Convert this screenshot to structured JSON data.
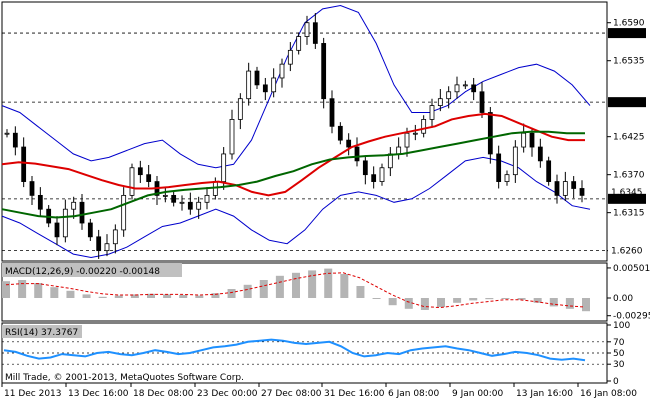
{
  "main": {
    "price_ticks": [
      "1.6590",
      "1.6535",
      "1.6425",
      "1.6370",
      "1.6315",
      "1.6260"
    ],
    "levels": [
      {
        "value": "1.6575",
        "bg": "#000000",
        "fg": "#ffffff"
      },
      {
        "value": "1.6475",
        "bg": "#000000",
        "fg": "#ffffff"
      },
      {
        "value": "1.6345",
        "bg": "#ffffff",
        "fg": "#000000"
      },
      {
        "value": "1.6335",
        "bg": "#000000",
        "fg": "#ffffff"
      },
      {
        "value": "1.6260",
        "bg": "#ffffff",
        "fg": "#000000"
      }
    ]
  },
  "macd": {
    "label": "MACD(12,26,9) -0.00220 -0.00148",
    "ticks": [
      "0.00501",
      "0.00",
      "-0.00295"
    ]
  },
  "rsi": {
    "label": "RSI(14) 37.3767",
    "ticks": [
      "100",
      "70",
      "50",
      "30",
      "0"
    ]
  },
  "footer": {
    "copyright": "Mill Trade, © 2001-2013, MetaQuotes Software Corp."
  },
  "time_axis": [
    "11 Dec 2013",
    "13 Dec 16:00",
    "18 Dec 08:00",
    "23 Dec 00:00",
    "27 Dec 08:00",
    "31 Dec 16:00",
    "6 Jan 08:00",
    "9 Jan 00:00",
    "13 Jan 16:00",
    "16 Jan 08:00"
  ],
  "colors": {
    "bollinger": "#0000cc",
    "ma_red": "#dd0000",
    "ma_green": "#006600",
    "macd_hist": "#b4b4b4",
    "macd_signal": "#dd0000",
    "rsi_line": "#1e90ff"
  },
  "chart_data": {
    "type": "line",
    "instrument_note": "",
    "x": [
      "11 Dec 2013",
      "13 Dec 16:00",
      "18 Dec 08:00",
      "23 Dec 00:00",
      "27 Dec 08:00",
      "31 Dec 16:00",
      "6 Jan 08:00",
      "9 Jan 00:00",
      "13 Jan 16:00",
      "16 Jan 08:00"
    ],
    "series": [
      {
        "name": "",
        "values": [
          1.643,
          1.63,
          1.633,
          1.635,
          1.652,
          1.657,
          1.639,
          1.65,
          1.644,
          1.634
        ]
      }
    ],
    "close_path": [
      1.643,
      1.641,
      1.636,
      1.634,
      1.632,
      1.63,
      1.628,
      1.632,
      1.633,
      1.63,
      1.628,
      1.626,
      1.627,
      1.629,
      1.634,
      1.638,
      1.637,
      1.636,
      1.634,
      1.634,
      1.633,
      1.633,
      1.632,
      1.633,
      1.634,
      1.636,
      1.64,
      1.645,
      1.648,
      1.652,
      1.65,
      1.649,
      1.651,
      1.653,
      1.655,
      1.657,
      1.659,
      1.656,
      1.648,
      1.644,
      1.642,
      1.641,
      1.639,
      1.637,
      1.636,
      1.638,
      1.64,
      1.641,
      1.643,
      1.643,
      1.645,
      1.647,
      1.648,
      1.649,
      1.65,
      1.65,
      1.649,
      1.646,
      1.64,
      1.636,
      1.637,
      1.641,
      1.643,
      1.641,
      1.639,
      1.636,
      1.634,
      1.636,
      1.635,
      1.634
    ],
    "ma_red": [
      1.6385,
      1.6388,
      1.6386,
      1.6382,
      1.6378,
      1.637,
      1.6362,
      1.6355,
      1.635,
      1.635,
      1.6352,
      1.6355,
      1.6358,
      1.636,
      1.6355,
      1.6345,
      1.634,
      1.6345,
      1.6362,
      1.638,
      1.6395,
      1.641,
      1.6418,
      1.6425,
      1.643,
      1.6435,
      1.644,
      1.645,
      1.6455,
      1.6458,
      1.6455,
      1.6445,
      1.6435,
      1.6425,
      1.642,
      1.642
    ],
    "ma_green": [
      1.632,
      1.6315,
      1.631,
      1.6308,
      1.631,
      1.6315,
      1.632,
      1.633,
      1.634,
      1.6345,
      1.6348,
      1.635,
      1.6352,
      1.6355,
      1.636,
      1.6368,
      1.6375,
      1.6385,
      1.6392,
      1.6395,
      1.6397,
      1.6398,
      1.64,
      1.6405,
      1.641,
      1.6415,
      1.642,
      1.6425,
      1.643,
      1.6432,
      1.6432,
      1.643,
      1.643
    ],
    "bb_upper": [
      1.647,
      1.646,
      1.644,
      1.642,
      1.64,
      1.639,
      1.6395,
      1.6405,
      1.6415,
      1.642,
      1.64,
      1.6385,
      1.638,
      1.6385,
      1.642,
      1.648,
      1.654,
      1.659,
      1.661,
      1.6615,
      1.6605,
      1.656,
      1.65,
      1.646,
      1.646,
      1.647,
      1.649,
      1.6505,
      1.6515,
      1.6525,
      1.653,
      1.652,
      1.65,
      1.647
    ],
    "bb_lower": [
      1.631,
      1.63,
      1.6285,
      1.627,
      1.6255,
      1.625,
      1.6255,
      1.6265,
      1.628,
      1.6295,
      1.63,
      1.631,
      1.632,
      1.631,
      1.629,
      1.6275,
      1.627,
      1.629,
      1.632,
      1.634,
      1.6345,
      1.634,
      1.633,
      1.6335,
      1.635,
      1.637,
      1.639,
      1.6395,
      1.639,
      1.638,
      1.636,
      1.6345,
      1.6325,
      1.632
    ],
    "macd_hist": [
      0.0028,
      0.003,
      0.0025,
      0.0018,
      0.0012,
      0.0006,
      0.0002,
      0.0004,
      0.0006,
      0.0007,
      0.0006,
      0.0005,
      0.0004,
      0.0008,
      0.0015,
      0.0022,
      0.003,
      0.0037,
      0.0042,
      0.0046,
      0.0049,
      0.004,
      0.002,
      0.0,
      -0.0012,
      -0.0018,
      -0.002,
      -0.0015,
      -0.0008,
      -0.0004,
      -0.0002,
      0.0,
      -0.0003,
      -0.0008,
      -0.0014,
      -0.0018,
      -0.0022
    ],
    "macd_signal": [
      0.0022,
      0.0024,
      0.0024,
      0.002,
      0.0016,
      0.0011,
      0.0007,
      0.0005,
      0.0005,
      0.0006,
      0.0006,
      0.0006,
      0.0005,
      0.0006,
      0.0009,
      0.0014,
      0.002,
      0.0026,
      0.0032,
      0.0037,
      0.0041,
      0.0042,
      0.0034,
      0.002,
      0.0006,
      -0.0006,
      -0.0014,
      -0.0016,
      -0.0013,
      -0.0009,
      -0.0006,
      -0.0003,
      -0.0003,
      -0.0006,
      -0.001,
      -0.0013,
      -0.0015
    ],
    "rsi": [
      55,
      52,
      45,
      40,
      42,
      48,
      46,
      44,
      50,
      52,
      48,
      46,
      50,
      55,
      52,
      48,
      50,
      55,
      60,
      62,
      65,
      70,
      72,
      74,
      72,
      68,
      66,
      68,
      70,
      62,
      50,
      44,
      46,
      50,
      48,
      55,
      58,
      60,
      62,
      58,
      55,
      50,
      45,
      48,
      52,
      50,
      46,
      40,
      38,
      40,
      37
    ]
  }
}
